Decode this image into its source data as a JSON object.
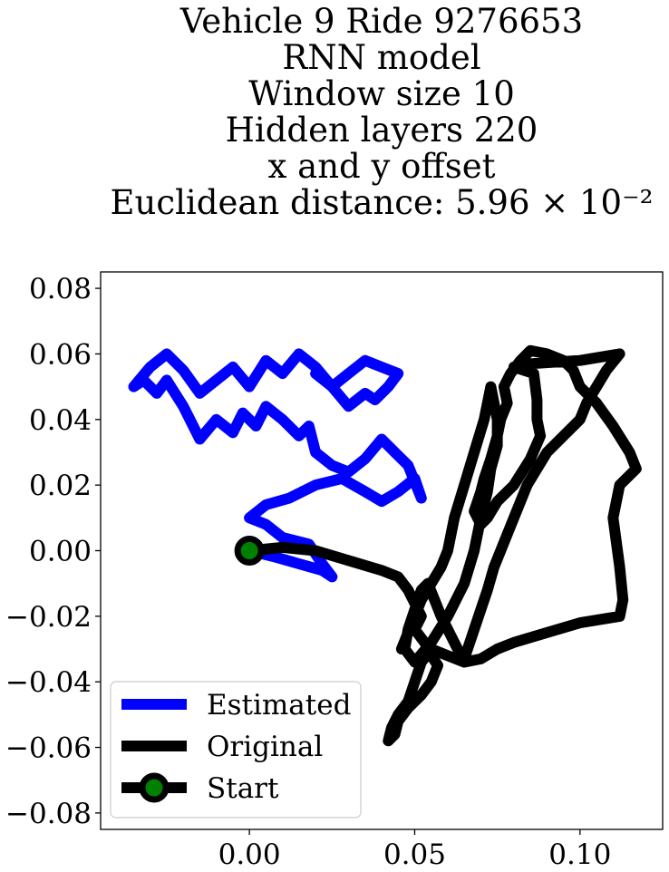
{
  "chart_data": {
    "type": "line",
    "title_lines": [
      "Vehicle 9 Ride 9276653",
      "RNN model",
      "Window size 10",
      "Hidden layers 220",
      "x and y offset",
      "Euclidean distance: 5.96 × 10⁻²"
    ],
    "xlabel": "",
    "ylabel": "",
    "xlim": [
      -0.045,
      0.125
    ],
    "ylim": [
      -0.085,
      0.085
    ],
    "xticks": [
      0.0,
      0.05,
      0.1
    ],
    "xtick_labels": [
      "0.00",
      "0.05",
      "0.10"
    ],
    "yticks": [
      0.08,
      0.06,
      0.04,
      0.02,
      0.0,
      -0.02,
      -0.04,
      -0.06,
      -0.08
    ],
    "ytick_labels": [
      "0.08",
      "0.06",
      "0.04",
      "0.02",
      "0.00",
      "−0.02",
      "−0.04",
      "−0.06",
      "−0.08"
    ],
    "grid": false,
    "legend_position": "lower-left",
    "series": [
      {
        "name": "Estimated",
        "color": "#0000ff",
        "x": [
          0.0,
          0.008,
          0.015,
          0.022,
          0.025,
          0.022,
          0.018,
          0.01,
          0.005,
          0.0,
          0.005,
          0.012,
          0.02,
          0.028,
          0.035,
          0.04,
          0.045,
          0.05,
          0.052,
          0.048,
          0.044,
          0.04,
          0.035,
          0.03,
          0.025,
          0.02,
          0.018,
          0.015,
          0.01,
          0.005,
          0.002,
          -0.002,
          -0.005,
          -0.01,
          -0.015,
          -0.02,
          -0.025,
          -0.028,
          -0.032,
          -0.035,
          -0.03,
          -0.025,
          -0.02,
          -0.015,
          -0.01,
          -0.005,
          0.0,
          0.005,
          0.01,
          0.015,
          0.02,
          0.025,
          0.03,
          0.035,
          0.04,
          0.045,
          0.042,
          0.038,
          0.035,
          0.03,
          0.025,
          0.02
        ],
        "y": [
          0.0,
          -0.002,
          -0.004,
          -0.006,
          -0.008,
          -0.004,
          0.002,
          0.004,
          0.008,
          0.01,
          0.014,
          0.016,
          0.02,
          0.022,
          0.018,
          0.015,
          0.018,
          0.022,
          0.016,
          0.026,
          0.03,
          0.034,
          0.028,
          0.024,
          0.026,
          0.03,
          0.038,
          0.035,
          0.04,
          0.044,
          0.038,
          0.042,
          0.036,
          0.04,
          0.034,
          0.044,
          0.052,
          0.048,
          0.052,
          0.05,
          0.056,
          0.06,
          0.055,
          0.048,
          0.052,
          0.056,
          0.05,
          0.058,
          0.054,
          0.06,
          0.056,
          0.05,
          0.054,
          0.058,
          0.056,
          0.054,
          0.05,
          0.046,
          0.048,
          0.044,
          0.05,
          0.054
        ]
      },
      {
        "name": "Original",
        "color": "#000000",
        "x": [
          0.0,
          0.01,
          0.02,
          0.03,
          0.04,
          0.045,
          0.048,
          0.05,
          0.052,
          0.05,
          0.053,
          0.055,
          0.057,
          0.055,
          0.052,
          0.048,
          0.045,
          0.044,
          0.042,
          0.043,
          0.045,
          0.048,
          0.05,
          0.052,
          0.055,
          0.06,
          0.065,
          0.07,
          0.075,
          0.08,
          0.09,
          0.1,
          0.112,
          0.113,
          0.112,
          0.11,
          0.112,
          0.117,
          0.115,
          0.11,
          0.105,
          0.1,
          0.098,
          0.095,
          0.09,
          0.085,
          0.082,
          0.079,
          0.077,
          0.078,
          0.076,
          0.075,
          0.073,
          0.071,
          0.07,
          0.069,
          0.068,
          0.07,
          0.072,
          0.075,
          0.08,
          0.085,
          0.088,
          0.087,
          0.087,
          0.086,
          0.08,
          0.085,
          0.1,
          0.112,
          0.108,
          0.105,
          0.102,
          0.1,
          0.095,
          0.09,
          0.087,
          0.084,
          0.082,
          0.08,
          0.078,
          0.076,
          0.074,
          0.072,
          0.07,
          0.068,
          0.066,
          0.065,
          0.064,
          0.062,
          0.06,
          0.058,
          0.056,
          0.054,
          0.052,
          0.05,
          0.048,
          0.047,
          0.05,
          0.055,
          0.06,
          0.065,
          0.068,
          0.07,
          0.072,
          0.073,
          0.075,
          0.075,
          0.074,
          0.073,
          0.071,
          0.068,
          0.065,
          0.062,
          0.06,
          0.058,
          0.055,
          0.052,
          0.05,
          0.048,
          0.046
        ],
        "y": [
          0.0,
          0.001,
          0.0,
          -0.003,
          -0.006,
          -0.008,
          -0.012,
          -0.016,
          -0.02,
          -0.024,
          -0.028,
          -0.032,
          -0.035,
          -0.04,
          -0.044,
          -0.048,
          -0.052,
          -0.056,
          -0.058,
          -0.054,
          -0.05,
          -0.046,
          -0.04,
          -0.034,
          -0.03,
          -0.032,
          -0.034,
          -0.033,
          -0.03,
          -0.028,
          -0.025,
          -0.022,
          -0.02,
          -0.015,
          -0.005,
          0.01,
          0.02,
          0.025,
          0.03,
          0.038,
          0.045,
          0.05,
          0.055,
          0.058,
          0.06,
          0.061,
          0.058,
          0.054,
          0.05,
          0.045,
          0.04,
          0.035,
          0.028,
          0.022,
          0.018,
          0.015,
          0.012,
          0.008,
          0.01,
          0.015,
          0.02,
          0.028,
          0.035,
          0.04,
          0.046,
          0.054,
          0.056,
          0.057,
          0.058,
          0.06,
          0.055,
          0.05,
          0.045,
          0.04,
          0.035,
          0.03,
          0.025,
          0.02,
          0.015,
          0.01,
          0.005,
          0.0,
          -0.005,
          -0.012,
          -0.018,
          -0.024,
          -0.03,
          -0.033,
          -0.032,
          -0.028,
          -0.024,
          -0.02,
          -0.015,
          -0.01,
          -0.012,
          -0.018,
          -0.024,
          -0.03,
          -0.034,
          -0.028,
          -0.02,
          -0.01,
          0.0,
          0.01,
          0.018,
          0.025,
          0.032,
          0.04,
          0.045,
          0.05,
          0.04,
          0.03,
          0.02,
          0.01,
          0.0,
          -0.005,
          -0.01,
          -0.015,
          -0.02,
          -0.025,
          -0.03
        ]
      }
    ],
    "legend": [
      {
        "label": "Estimated",
        "color": "#0000ff",
        "marker": "none"
      },
      {
        "label": "Original",
        "color": "#000000",
        "marker": "none"
      },
      {
        "label": "Start",
        "color": "#000000",
        "marker": "circle",
        "marker_face": "#008000"
      }
    ],
    "start_point": {
      "x": 0.0,
      "y": 0.0,
      "edge_color": "#000000",
      "face_color": "#008000"
    }
  }
}
